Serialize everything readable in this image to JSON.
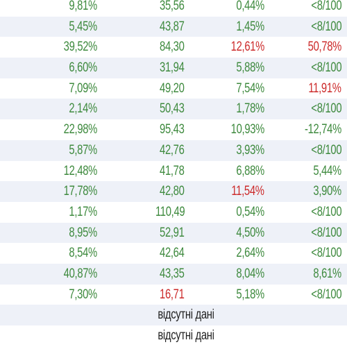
{
  "colors": {
    "positive": "#3e8a3e",
    "negative": "#cc2b2b",
    "row_alt": "#eef1f8",
    "text": "#1f1f1f"
  },
  "rows": [
    {
      "c1": "9,81%",
      "c2": "35,56",
      "c3": "0,44%",
      "c4": "<8/100",
      "red": []
    },
    {
      "c1": "5,45%",
      "c2": "43,87",
      "c3": "1,45%",
      "c4": "<8/100",
      "red": []
    },
    {
      "c1": "39,52%",
      "c2": "84,30",
      "c3": "12,61%",
      "c4": "50,78%",
      "red": [
        "c3",
        "c4"
      ]
    },
    {
      "c1": "6,60%",
      "c2": "31,94",
      "c3": "5,88%",
      "c4": "<8/100",
      "red": []
    },
    {
      "c1": "7,09%",
      "c2": "49,20",
      "c3": "7,54%",
      "c4": "11,91%",
      "red": [
        "c4"
      ]
    },
    {
      "c1": "2,14%",
      "c2": "50,43",
      "c3": "1,78%",
      "c4": "<8/100",
      "red": []
    },
    {
      "c1": "22,98%",
      "c2": "95,43",
      "c3": "10,93%",
      "c4": "-12,74%",
      "red": []
    },
    {
      "c1": "5,87%",
      "c2": "42,76",
      "c3": "3,93%",
      "c4": "<8/100",
      "red": []
    },
    {
      "c1": "12,48%",
      "c2": "41,78",
      "c3": "6,88%",
      "c4": "5,44%",
      "red": []
    },
    {
      "c1": "17,78%",
      "c2": "42,80",
      "c3": "11,54%",
      "c4": "3,90%",
      "red": [
        "c3"
      ]
    },
    {
      "c1": "1,17%",
      "c2": "110,49",
      "c3": "0,54%",
      "c4": "<8/100",
      "red": []
    },
    {
      "c1": "8,95%",
      "c2": "52,91",
      "c3": "4,50%",
      "c4": "<8/100",
      "red": []
    },
    {
      "c1": "8,54%",
      "c2": "42,64",
      "c3": "2,64%",
      "c4": "<8/100",
      "red": []
    },
    {
      "c1": "40,87%",
      "c2": "43,35",
      "c3": "8,04%",
      "c4": "8,61%",
      "red": []
    },
    {
      "c1": "7,30%",
      "c2": "16,71",
      "c3": "5,18%",
      "c4": "<8/100",
      "red": [
        "c2"
      ]
    }
  ],
  "missing_rows": [
    {
      "label": "відсутні дані"
    },
    {
      "label": "відсутні дані"
    }
  ]
}
